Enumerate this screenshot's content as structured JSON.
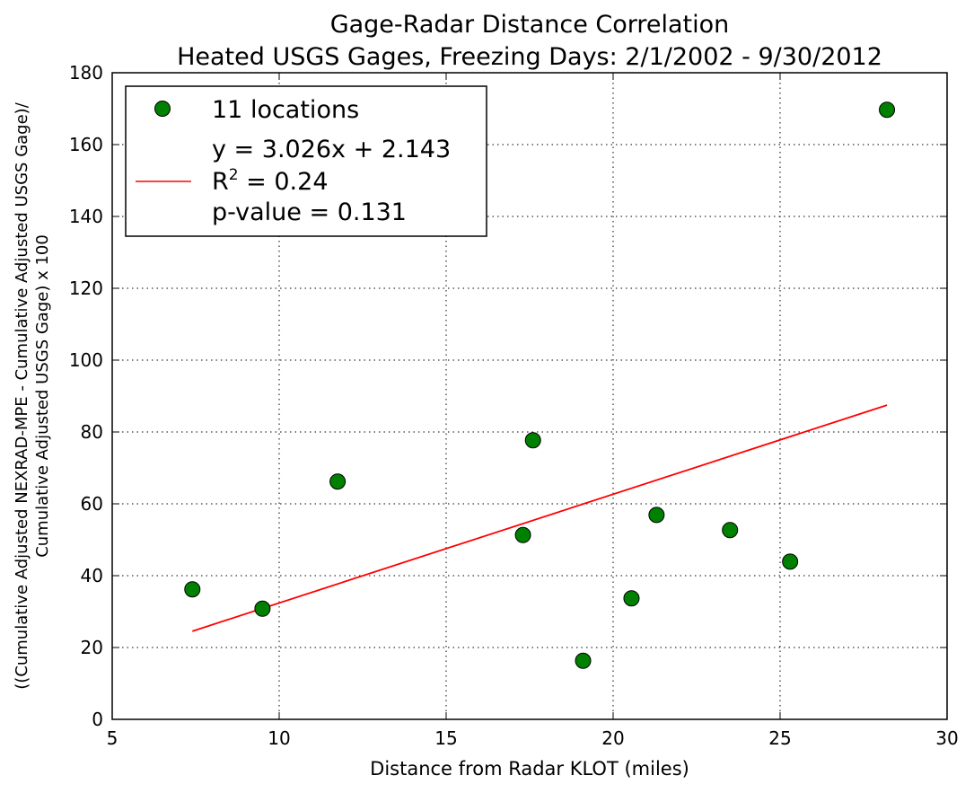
{
  "chart_data": {
    "type": "scatter",
    "title": [
      "Gage-Radar Distance Correlation",
      "Heated USGS Gages, Freezing Days: 2/1/2002 - 9/30/2012"
    ],
    "xlabel": "Distance from Radar KLOT (miles)",
    "ylabel": [
      "((Cumulative Adjusted NEXRAD-MPE - Cumulative Adjusted USGS Gage)/",
      "Cumulative Adjusted USGS Gage) x 100"
    ],
    "xlim": [
      5,
      30
    ],
    "ylim": [
      0,
      180
    ],
    "xticks": [
      5,
      10,
      15,
      20,
      25,
      30
    ],
    "yticks": [
      0,
      20,
      40,
      60,
      80,
      100,
      120,
      140,
      160,
      180
    ],
    "grid": true,
    "grid_style": "dotted",
    "legend_position": "top-left",
    "series": [
      {
        "name": "11 locations",
        "kind": "scatter",
        "color": "#008000",
        "points": [
          {
            "x": 7.4,
            "y": 36.2
          },
          {
            "x": 9.5,
            "y": 30.8
          },
          {
            "x": 11.75,
            "y": 66.2
          },
          {
            "x": 17.3,
            "y": 51.3
          },
          {
            "x": 17.6,
            "y": 77.7
          },
          {
            "x": 19.1,
            "y": 16.3
          },
          {
            "x": 20.55,
            "y": 33.7
          },
          {
            "x": 21.3,
            "y": 56.9
          },
          {
            "x": 23.5,
            "y": 52.7
          },
          {
            "x": 25.3,
            "y": 43.9
          },
          {
            "x": 28.2,
            "y": 169.7
          }
        ]
      },
      {
        "kind": "line",
        "color": "#ff0000",
        "slope": 3.026,
        "intercept": 2.143,
        "x_range": [
          7.4,
          28.2
        ],
        "legend_lines": [
          "y = 3.026x + 2.143",
          "R",
          "2",
          " = 0.24",
          "p-value = 0.131"
        ]
      }
    ]
  }
}
